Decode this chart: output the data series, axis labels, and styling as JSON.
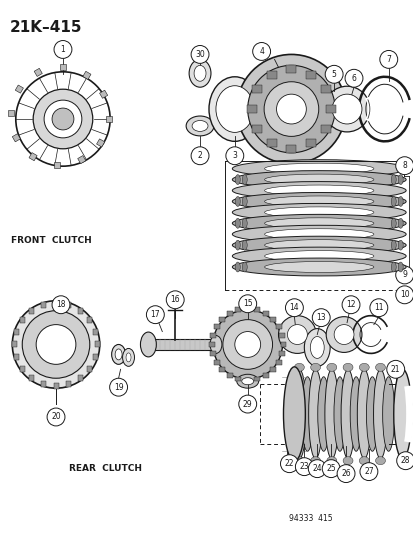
{
  "title": "21K–415",
  "bg_color": "#ffffff",
  "line_color": "#1a1a1a",
  "front_clutch_label": "FRONT  CLUTCH",
  "rear_clutch_label": "REAR  CLUTCH",
  "catalog_number": "94333  415",
  "figsize": [
    4.14,
    5.33
  ],
  "dpi": 100
}
